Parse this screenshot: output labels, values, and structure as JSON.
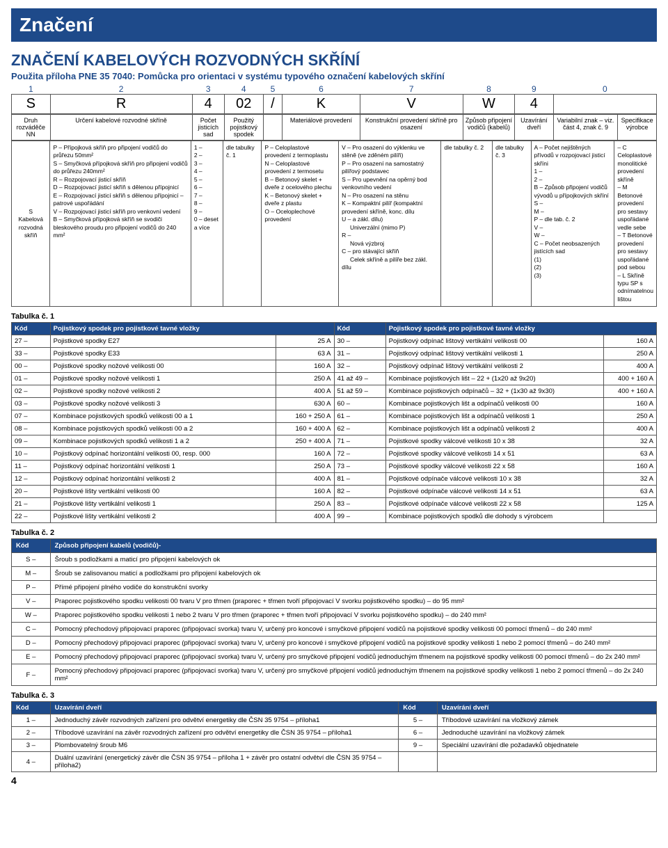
{
  "titleBar": "Značení",
  "mainHeading": "ZNAČENÍ KABELOVÝCH ROZVODNÝCH SKŘÍNÍ",
  "subHeading": "Použita příloha PNE 35 7040: Pomůcka pro orientaci v systému typového označení kabelových skříní",
  "positions": [
    "1",
    "2",
    "3",
    "4",
    "5",
    "6",
    "7",
    "8",
    "9",
    "0"
  ],
  "example": [
    "S",
    "R",
    "4",
    "02",
    "/",
    "K",
    "V",
    "W",
    "4",
    ""
  ],
  "headers": [
    "Druh rozváděče NN",
    "Určení kabelové rozvodné skříně",
    "Počet jisticích sad",
    "Použitý pojistkový spodek",
    "",
    "Materiálové provedení",
    "Konstrukční provedení skříně pro osazení",
    "Způsob připojení vodičů (kabelů)",
    "Uzavírání dveří",
    "Variabilní znak – viz. část 4, znak č. 9",
    "Specifikace výrobce"
  ],
  "legend": {
    "c1": "S\nKabelová rozvodná skříň",
    "c2": "P – Přípojková skříň pro připojení vodičů do průřezu 50mm²\nS – Smyčková přípojková skříň pro připojení vodičů do průřezu 240mm²\nR – Rozpojovací jisticí skříň\nD – Rozpojovací jisticí skříň s dělenou přípojnicí\nE – Rozpojovací jisticí skříň s dělenou přípojnicí – patrové uspořádání\nV – Rozpojovací jisticí skříň pro venkovní vedení\nB – Smyčková přípojková skříň se svodiči bleskového proudu pro připojení vodičů do 240 mm²",
    "c3": "1 –\n2 –\n3 –\n4 –\n5 –\n6 –\n7 –\n8 –\n9 –\n0 – deset a více",
    "c4": "dle tabulky č. 1",
    "c5": "P – Celoplastové provedení z termoplastu\nN – Celoplastové provedení z termosetu\nB – Betonový skelet + dveře z ocelového plechu\nK – Betonový skelet + dveře z plastu\nO – Oceloplechové provedení",
    "c6": "V – Pro osazení do výklenku ve stěně (ve zděném pilíři)\nP – Pro osazení na samostatný pilířový podstavec\nS – Pro upevnění na opěrný bod venkovního vedení\nN – Pro osazení na stěnu\nK – Kompaktní pilíř (kompaktní provedení skříně, konc. dílu\nU – a zákl. dílu)\n     Univerzální (mimo P)\nR –\n     Nová výzbroj\nC – pro stávající skříň\n     Celek skříně a pilíře bez zákl. dílu",
    "c7": "dle tabulky č. 2",
    "c8": "dle tabulky č. 3",
    "c9": "A – Počet nejištěných přívodů v rozpojovací jisticí skříni\n1 –\n2 –\nB – Způsob připojení vodičů vývodů u přípojkových skříní\nS –\nM –\nP – dle tab. č. 2\nV –\nW –\nC – Počet neobsazených jistících sad\n(1)\n(2)\n(3)",
    "c10": "– C Celoplastové monolitické provedení skříně\n– M Betonové provedení pro sestavy uspořádané vedle sebe\n– T Betonové provedení pro sestavy uspořádané pod sebou\n– L Skříně typu SP s odnímatelnou lištou"
  },
  "table1Label": "Tabulka č. 1",
  "table1Header": [
    "Kód",
    "Pojistkový spodek pro pojistkové tavné vložky",
    "Kód",
    "Pojistkový spodek pro pojistkové tavné vložky"
  ],
  "table1": [
    [
      "27 –",
      "Pojistkové spodky E27",
      "25 A",
      "30 –",
      "Pojistkový odpínač lištový vertikální velikosti 00",
      "160 A"
    ],
    [
      "33 –",
      "Pojistkové spodky E33",
      "63 A",
      "31 –",
      "Pojistkový odpínač lištový vertikální velikosti 1",
      "250 A"
    ],
    [
      "00 –",
      "Pojistkové spodky nožové velikosti 00",
      "160 A",
      "32 –",
      "Pojistkový odpínač lištový vertikální velikosti 2",
      "400 A"
    ],
    [
      "01 –",
      "Pojistkové spodky nožové velikosti 1",
      "250 A",
      "41 až 49 –",
      "Kombinace pojistkových lišt – 22 + (1x20 až 9x20)",
      "400 + 160 A"
    ],
    [
      "02 –",
      "Pojistkové spodky nožové velikosti 2",
      "400 A",
      "51 až 59 –",
      "Kombinace pojistkových odpínačů – 32 + (1x30 až 9x30)",
      "400 + 160 A"
    ],
    [
      "03 –",
      "Pojistkové spodky nožové velikosti 3",
      "630 A",
      "60 –",
      "Kombinace pojistkových lišt a odpínačů velikosti 00",
      "160 A"
    ],
    [
      "07 –",
      "Kombinace pojistkových spodků velikosti 00 a 1",
      "160 + 250 A",
      "61 –",
      "Kombinace pojistkových lišt a odpínačů velikosti 1",
      "250 A"
    ],
    [
      "08 –",
      "Kombinace pojistkových spodků velikosti 00 a 2",
      "160 + 400 A",
      "62 –",
      "Kombinace pojistkových lišt a odpínačů velikosti 2",
      "400 A"
    ],
    [
      "09 –",
      "Kombinace pojistkových spodků velikosti 1 a 2",
      "250 + 400 A",
      "71 –",
      "Pojistkové spodky válcové velikosti 10 x 38",
      "32 A"
    ],
    [
      "10 –",
      "Pojistkový odpínač horizontální velikosti 00, resp. 000",
      "160 A",
      "72 –",
      "Pojistkové spodky válcové velikosti 14 x 51",
      "63 A"
    ],
    [
      "11 –",
      "Pojistkový odpínač horizontální velikosti 1",
      "250 A",
      "73 –",
      "Pojistkové spodky válcové velikosti 22 x 58",
      "160 A"
    ],
    [
      "12 –",
      "Pojistkový odpínač horizontální velikosti 2",
      "400 A",
      "81 –",
      "Pojistkové odpínače válcové velikosti 10 x 38",
      "32 A"
    ],
    [
      "20 –",
      "Pojistkové lišty vertikální velikosti 00",
      "160 A",
      "82 –",
      "Pojistkové odpínače válcové velikosti 14 x 51",
      "63 A"
    ],
    [
      "21 –",
      "Pojistkové lišty vertikální velikosti 1",
      "250 A",
      "83 –",
      "Pojistkové odpínače válcové velikosti 22 x 58",
      "125 A"
    ],
    [
      "22 –",
      "Pojistkové lišty vertikální velikosti 2",
      "400 A",
      "99 –",
      "Kombinace pojistkových spodků dle dohody s výrobcem",
      ""
    ]
  ],
  "table2Label": "Tabulka č. 2",
  "table2Header": [
    "Kód",
    "Způsob připojení kabelů (vodičů)-"
  ],
  "table2": [
    [
      "S –",
      "Šroub s podložkami a maticí pro připojení kabelových ok"
    ],
    [
      "M –",
      "Šroub se zalisovanou maticí a podložkami pro připojení kabelových ok"
    ],
    [
      "P –",
      "Přímé připojení plného vodiče do konstrukční svorky"
    ],
    [
      "V –",
      "Praporec pojistkového spodku velikosti 00 tvaru V pro třmen (praporec + třmen tvoří připojovací V svorku pojistkového spodku) – do 95 mm²"
    ],
    [
      "W –",
      "Praporec pojistkového spodku velikosti 1 nebo 2 tvaru V pro třmen (praporec + třmen tvoří připojovací V svorku pojistkového spodku) – do 240 mm²"
    ],
    [
      "C –",
      "Pomocný přechodový připojovací praporec (připojovací svorka) tvaru V, určený pro koncové i smyčkové připojení vodičů na pojistkové spodky velikosti 00 pomocí třmenů – do 240 mm²"
    ],
    [
      "D –",
      "Pomocný přechodový připojovací praporec (připojovací svorka) tvaru V, určený pro koncové i smyčkové připojení vodičů na pojistkové spodky velikosti 1 nebo 2 pomocí třmenů – do 240 mm²"
    ],
    [
      "E –",
      "Pomocný přechodový připojovací praporec (připojovací svorka) tvaru V, určený pro smyčkové připojení vodičů jednoduchým třmenem na pojistkové spodky velikosti 00 pomocí třmenů – do 2x 240 mm²"
    ],
    [
      "F –",
      "Pomocný přechodový připojovací praporec (připojovací svorka) tvaru V, určený pro smyčkové připojení vodičů jednoduchým třmenem na pojistkové spodky velikosti 1 nebo 2 pomocí třmenů – do 2x 240 mm²"
    ]
  ],
  "table3Label": "Tabulka č. 3",
  "table3Header": [
    "Kód",
    "Uzavírání dveří",
    "Kód",
    "Uzavírání dveří"
  ],
  "table3": [
    [
      "1 –",
      "Jednoduchý závěr rozvodných zařízení pro odvětví energetiky dle ČSN 35 9754 – příloha1",
      "5 –",
      "Tříbodové uzavírání na vložkový zámek"
    ],
    [
      "2 –",
      "Tříbodové uzavírání na závěr rozvodných zařízení pro odvětví energetiky dle ČSN 35 9754 – příloha1",
      "6 –",
      "Jednoduché uzavírání na vložkový zámek"
    ],
    [
      "3 –",
      "Plombovatelný šroub M6",
      "9 –",
      "Speciální uzavírání dle požadavků objednatele"
    ],
    [
      "4 –",
      "Duální uzavírání (energetický závěr dle ČSN 35 9754 – příloha 1 + závěr pro ostatní odvětví dle ČSN 35 9754 – příloha2)",
      "",
      ""
    ]
  ],
  "pageNum": "4"
}
